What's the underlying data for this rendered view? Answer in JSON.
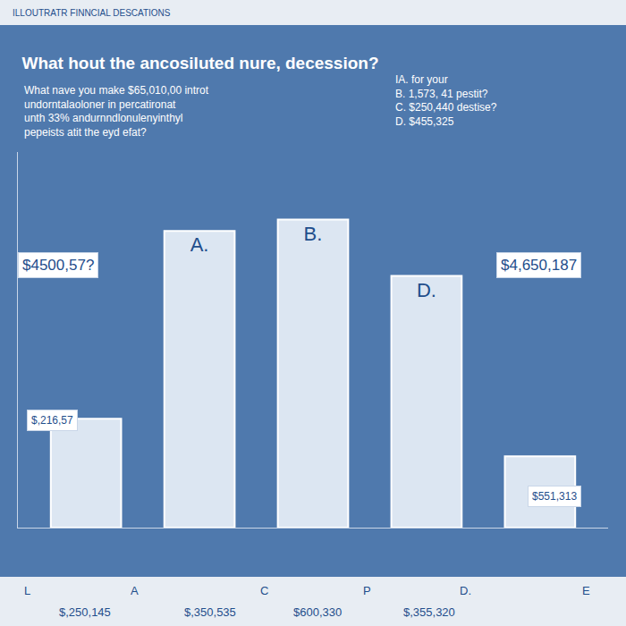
{
  "header": "ILLOUTRATR FINNCIAL DESCATIONS",
  "chart_data": {
    "type": "bar",
    "title": "What hout the ancosiluted nure, decession?",
    "question": [
      "What nave you make $65,010,00 introt",
      "undorntalaoloner in percatironat",
      "unth 33% andurnndlonulenyinthyl",
      "pepeists atit the eyd efat?"
    ],
    "options": [
      "IA. for your",
      "B. 1,573, 41 pestit?",
      "C. $250,440 destise?",
      "D. $455,325"
    ],
    "categories": [
      null,
      null,
      null,
      null,
      null
    ],
    "values": [
      29,
      79,
      82,
      67,
      19
    ],
    "bar_labels": [
      null,
      "A.",
      "B.",
      "D.",
      null
    ],
    "color": "#dce6f2",
    "ylim": [
      0,
      100
    ],
    "tick_labels": false,
    "grid": false,
    "callouts": [
      "$4500,57?",
      "$4,650,187",
      "$,216,57",
      "$551,313"
    ],
    "axis_letters": [
      "L",
      "A",
      "C",
      "P",
      "D.",
      "E"
    ],
    "axis_values": [
      "$,250,145",
      "$,350,535",
      "$600,330",
      "$,355,320"
    ]
  }
}
